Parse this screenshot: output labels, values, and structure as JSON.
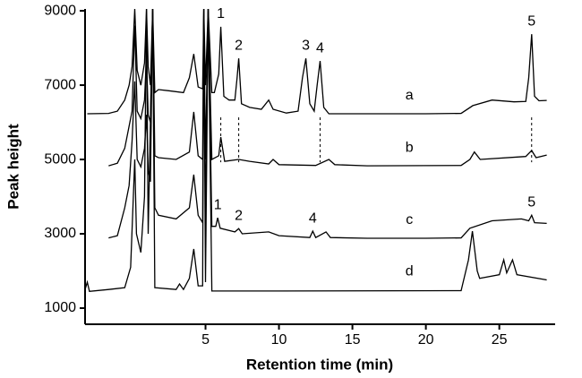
{
  "chart_data": {
    "type": "line",
    "xlabel": "Retention time (min)",
    "ylabel": "Peak height",
    "xlim": [
      -3.2,
      28.8
    ],
    "ylim": [
      566,
      9050
    ],
    "xticks": [
      5,
      10,
      15,
      20,
      25
    ],
    "yticks": [
      1000,
      3000,
      5000,
      7000,
      9000
    ],
    "grid": false,
    "series": [
      {
        "name": "a",
        "color": "#000000",
        "x": [
          -3.05,
          -1.6,
          -1.0,
          -0.5,
          -0.2,
          0.0,
          0.18,
          0.35,
          0.6,
          0.85,
          0.98,
          1.1,
          1.25,
          1.4,
          1.55,
          1.8,
          2.5,
          3.5,
          3.9,
          4.2,
          4.5,
          4.8,
          4.88,
          5.0,
          5.18,
          5.43,
          5.6,
          5.9,
          6.04,
          6.25,
          6.6,
          7.0,
          7.15,
          7.26,
          7.45,
          8.0,
          8.8,
          9.3,
          9.6,
          10.5,
          11.3,
          11.6,
          11.83,
          12.1,
          12.4,
          12.6,
          12.8,
          13.05,
          13.4,
          16,
          20,
          22.4,
          23.2,
          24.5,
          26.0,
          26.8,
          27.0,
          27.2,
          27.4,
          27.7,
          28.23
        ],
        "values": [
          6230,
          6240,
          6300,
          6600,
          7000,
          7500,
          9050,
          7400,
          7000,
          7600,
          9050,
          7500,
          7000,
          9050,
          6800,
          6880,
          6850,
          6800,
          7200,
          7840,
          6950,
          6900,
          9050,
          7000,
          9050,
          6800,
          6800,
          7300,
          8570,
          6700,
          6600,
          6600,
          7200,
          7720,
          6500,
          6400,
          6350,
          6600,
          6350,
          6250,
          6300,
          7200,
          7720,
          6500,
          6300,
          7000,
          7650,
          6400,
          6230,
          6230,
          6230,
          6240,
          6450,
          6600,
          6550,
          6560,
          7200,
          8370,
          6700,
          6580,
          6590
        ]
      },
      {
        "name": "b",
        "color": "#000000",
        "x": [
          -1.6,
          -1.0,
          -0.5,
          -0.2,
          0.0,
          0.18,
          0.35,
          0.6,
          0.85,
          0.98,
          1.1,
          1.25,
          1.4,
          1.55,
          1.8,
          3.0,
          3.9,
          4.2,
          4.5,
          4.8,
          4.88,
          5.0,
          5.18,
          5.43,
          5.9,
          6.04,
          6.3,
          7.26,
          8.0,
          9.3,
          9.6,
          10,
          12.5,
          13.4,
          13.8,
          16,
          22.4,
          23.0,
          23.3,
          23.7,
          26.8,
          27.2,
          27.5,
          28.23
        ],
        "values": [
          4830,
          4900,
          5300,
          5900,
          6300,
          8600,
          6300,
          6100,
          6600,
          7800,
          6200,
          6000,
          9050,
          5100,
          5050,
          5000,
          5200,
          6280,
          5100,
          5000,
          9050,
          5000,
          9050,
          5000,
          5100,
          5600,
          4950,
          5000,
          4950,
          4880,
          5000,
          4860,
          4840,
          5000,
          4860,
          4830,
          4840,
          5000,
          5200,
          5000,
          5080,
          5240,
          5050,
          5120
        ]
      },
      {
        "name": "c",
        "color": "#000000",
        "x": [
          -1.6,
          -1.0,
          -0.5,
          -0.2,
          0.0,
          0.18,
          0.35,
          0.6,
          0.85,
          0.98,
          1.1,
          1.25,
          1.4,
          1.55,
          1.8,
          3.0,
          3.9,
          4.2,
          4.5,
          4.8,
          4.88,
          5.0,
          5.18,
          5.43,
          5.7,
          5.83,
          6.0,
          7.0,
          7.26,
          7.5,
          9.3,
          10,
          12.1,
          12.3,
          12.5,
          13.2,
          13.5,
          16,
          20,
          22.4,
          23.0,
          24.5,
          26.5,
          27.0,
          27.2,
          27.4,
          28.23
        ],
        "values": [
          2890,
          2950,
          3700,
          4300,
          5500,
          7100,
          5000,
          4800,
          5300,
          6200,
          4700,
          4400,
          9050,
          3700,
          3500,
          3400,
          3700,
          4590,
          3500,
          3300,
          9050,
          3300,
          9050,
          3200,
          3200,
          3430,
          3150,
          3050,
          3140,
          3000,
          3050,
          2950,
          2900,
          3070,
          2900,
          3050,
          2900,
          2880,
          2880,
          2890,
          3150,
          3350,
          3400,
          3350,
          3500,
          3300,
          3280
        ]
      },
      {
        "name": "d",
        "color": "#000000",
        "x": [
          -3.2,
          -3.05,
          -2.9,
          -1.6,
          -0.5,
          -0.1,
          0.18,
          0.3,
          0.6,
          0.85,
          0.98,
          1.1,
          1.4,
          1.55,
          3.0,
          3.23,
          3.5,
          3.9,
          4.2,
          4.5,
          4.8,
          4.88,
          5.0,
          5.18,
          5.43,
          10,
          22.4,
          22.9,
          23.17,
          23.5,
          23.66,
          25.0,
          25.3,
          25.5,
          25.9,
          26.2,
          28.23
        ],
        "values": [
          1500,
          1700,
          1450,
          1500,
          1550,
          2100,
          5000,
          3000,
          2500,
          4000,
          9050,
          3000,
          9050,
          1550,
          1500,
          1650,
          1500,
          1800,
          2590,
          1600,
          1600,
          9050,
          1700,
          9050,
          1460,
          1460,
          1470,
          2300,
          3070,
          2000,
          1800,
          1900,
          2300,
          1950,
          2300,
          1900,
          1760
        ]
      }
    ],
    "annotations": [
      {
        "text": "1",
        "series": "a",
        "x": 6.04,
        "y": 8570,
        "guide": true
      },
      {
        "text": "2",
        "series": "a",
        "x": 7.26,
        "y": 7720,
        "guide": true
      },
      {
        "text": "3",
        "series": "a",
        "x": 11.83,
        "y": 7720,
        "guide": false
      },
      {
        "text": "4",
        "series": "a",
        "x": 12.8,
        "y": 7650,
        "guide": true
      },
      {
        "text": "5",
        "series": "a",
        "x": 27.2,
        "y": 8370,
        "guide": true
      },
      {
        "text": "1",
        "series": "c",
        "x": 5.83,
        "y": 3430,
        "guide": false
      },
      {
        "text": "2",
        "series": "c",
        "x": 7.26,
        "y": 3140,
        "guide": false
      },
      {
        "text": "4",
        "series": "c",
        "x": 12.3,
        "y": 3070,
        "guide": false
      },
      {
        "text": "5",
        "series": "c",
        "x": 27.2,
        "y": 3500,
        "guide": false
      }
    ]
  }
}
